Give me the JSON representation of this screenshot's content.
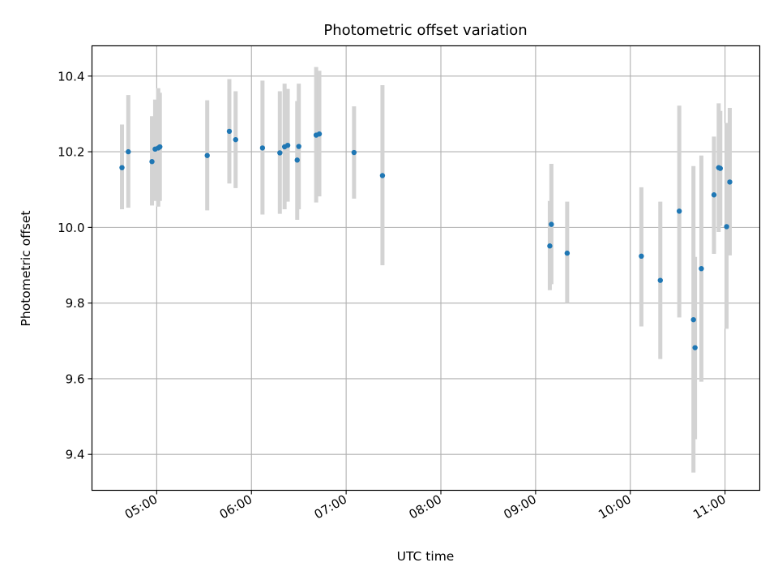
{
  "chart_data": {
    "type": "scatter",
    "title": "Photometric offset variation",
    "xlabel": "UTC time",
    "ylabel": "Photometric offset",
    "x_ticks": [
      "05:00",
      "06:00",
      "07:00",
      "08:00",
      "09:00",
      "10:00",
      "11:00"
    ],
    "y_ticks": [
      "9.4",
      "9.6",
      "9.8",
      "10.0",
      "10.2",
      "10.4"
    ],
    "xlim": [
      "04:19",
      "11:22"
    ],
    "ylim": [
      9.305,
      10.48
    ],
    "grid": true,
    "legend": "none",
    "colors": {
      "marker": "#1f77b4",
      "errorbar": "#d3d3d3",
      "grid": "#b0b0b0",
      "frame": "#000000"
    },
    "points": [
      {
        "x": "04:38",
        "y": 10.158,
        "ylow": 10.048,
        "yhigh": 10.272
      },
      {
        "x": "04:42",
        "y": 10.2,
        "ylow": 10.052,
        "yhigh": 10.35
      },
      {
        "x": "04:57",
        "y": 10.174,
        "ylow": 10.058,
        "yhigh": 10.294
      },
      {
        "x": "04:59",
        "y": 10.207,
        "ylow": 10.07,
        "yhigh": 10.338
      },
      {
        "x": "05:01",
        "y": 10.21,
        "ylow": 10.055,
        "yhigh": 10.368
      },
      {
        "x": "05:02",
        "y": 10.213,
        "ylow": 10.07,
        "yhigh": 10.356
      },
      {
        "x": "05:32",
        "y": 10.19,
        "ylow": 10.045,
        "yhigh": 10.336
      },
      {
        "x": "05:46",
        "y": 10.254,
        "ylow": 10.116,
        "yhigh": 10.392
      },
      {
        "x": "05:50",
        "y": 10.232,
        "ylow": 10.104,
        "yhigh": 10.36
      },
      {
        "x": "06:07",
        "y": 10.21,
        "ylow": 10.034,
        "yhigh": 10.388
      },
      {
        "x": "06:18",
        "y": 10.197,
        "ylow": 10.036,
        "yhigh": 10.36
      },
      {
        "x": "06:21",
        "y": 10.213,
        "ylow": 10.048,
        "yhigh": 10.38
      },
      {
        "x": "06:23",
        "y": 10.217,
        "ylow": 10.068,
        "yhigh": 10.366
      },
      {
        "x": "06:29",
        "y": 10.178,
        "ylow": 10.02,
        "yhigh": 10.334
      },
      {
        "x": "06:30",
        "y": 10.214,
        "ylow": 10.048,
        "yhigh": 10.38
      },
      {
        "x": "06:41",
        "y": 10.244,
        "ylow": 10.066,
        "yhigh": 10.424
      },
      {
        "x": "06:43",
        "y": 10.247,
        "ylow": 10.082,
        "yhigh": 10.414
      },
      {
        "x": "07:05",
        "y": 10.198,
        "ylow": 10.076,
        "yhigh": 10.32
      },
      {
        "x": "07:23",
        "y": 10.137,
        "ylow": 9.9,
        "yhigh": 10.376
      },
      {
        "x": "09:09",
        "y": 9.951,
        "ylow": 9.834,
        "yhigh": 10.07
      },
      {
        "x": "09:10",
        "y": 10.008,
        "ylow": 9.85,
        "yhigh": 10.168
      },
      {
        "x": "09:20",
        "y": 9.932,
        "ylow": 9.8,
        "yhigh": 10.068
      },
      {
        "x": "10:07",
        "y": 9.924,
        "ylow": 9.738,
        "yhigh": 10.106
      },
      {
        "x": "10:19",
        "y": 9.86,
        "ylow": 9.652,
        "yhigh": 10.068
      },
      {
        "x": "10:31",
        "y": 10.043,
        "ylow": 9.762,
        "yhigh": 10.322
      },
      {
        "x": "10:40",
        "y": 9.756,
        "ylow": 9.352,
        "yhigh": 10.162
      },
      {
        "x": "10:41",
        "y": 9.682,
        "ylow": 9.44,
        "yhigh": 9.922
      },
      {
        "x": "10:45",
        "y": 9.891,
        "ylow": 9.592,
        "yhigh": 10.19
      },
      {
        "x": "10:53",
        "y": 10.086,
        "ylow": 9.93,
        "yhigh": 10.24
      },
      {
        "x": "10:56",
        "y": 10.158,
        "ylow": 9.988,
        "yhigh": 10.328
      },
      {
        "x": "10:57",
        "y": 10.156,
        "ylow": 10.004,
        "yhigh": 10.308
      },
      {
        "x": "11:01",
        "y": 10.002,
        "ylow": 9.732,
        "yhigh": 10.276
      },
      {
        "x": "11:03",
        "y": 10.12,
        "ylow": 9.926,
        "yhigh": 10.316
      }
    ]
  }
}
